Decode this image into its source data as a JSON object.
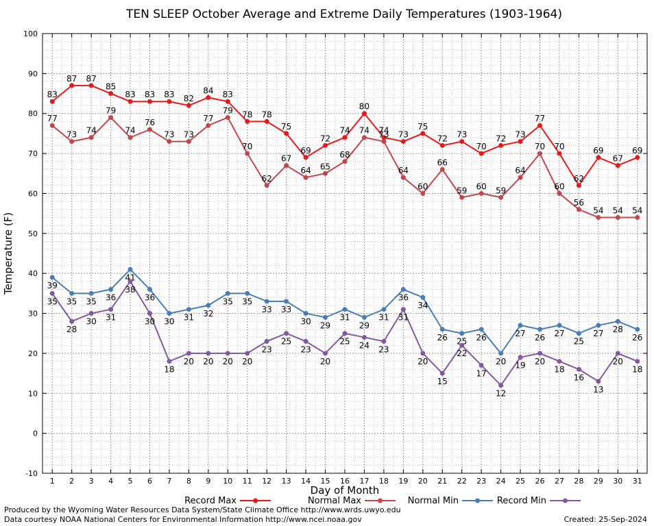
{
  "chart_data": {
    "type": "line",
    "title": "TEN SLEEP October Average and Extreme Daily Temperatures (1903-1964)",
    "xlabel": "Day of Month",
    "ylabel": "Temperature (F)",
    "ylim": [
      -10,
      100
    ],
    "yticks": [
      "-10",
      "0",
      "10",
      "20",
      "30",
      "40",
      "50",
      "60",
      "70",
      "80",
      "90",
      "100"
    ],
    "x": [
      1,
      2,
      3,
      4,
      5,
      6,
      7,
      8,
      9,
      10,
      11,
      12,
      13,
      14,
      15,
      16,
      17,
      18,
      19,
      20,
      21,
      22,
      23,
      24,
      25,
      26,
      27,
      28,
      29,
      30,
      31
    ],
    "grid": true,
    "legend_position": "bottom",
    "series": [
      {
        "name": "Record Max",
        "color": "#e41a1c",
        "values": [
          83,
          87,
          87,
          85,
          83,
          83,
          83,
          82,
          84,
          83,
          78,
          78,
          75,
          69,
          72,
          74,
          80,
          74,
          73,
          75,
          72,
          73,
          70,
          72,
          73,
          77,
          70,
          62,
          69,
          67,
          69
        ]
      },
      {
        "name": "Normal Max",
        "color": "#c0474c",
        "values": [
          77,
          73,
          74,
          79,
          74,
          76,
          73,
          73,
          77,
          79,
          70,
          62,
          67,
          64,
          65,
          68,
          74,
          73,
          64,
          60,
          66,
          59,
          60,
          59,
          64,
          70,
          60,
          56,
          54,
          54,
          54
        ]
      },
      {
        "name": "Normal Min",
        "color": "#4a7db5",
        "values": [
          39,
          35,
          35,
          36,
          41,
          36,
          30,
          31,
          32,
          35,
          35,
          33,
          33,
          30,
          29,
          31,
          29,
          31,
          36,
          34,
          26,
          25,
          26,
          20,
          27,
          26,
          27,
          25,
          27,
          28,
          26
        ]
      },
      {
        "name": "Record Min",
        "color": "#7f5a9c",
        "values": [
          35,
          28,
          30,
          31,
          38,
          30,
          18,
          20,
          20,
          20,
          20,
          23,
          25,
          23,
          20,
          25,
          24,
          23,
          31,
          20,
          15,
          22,
          17,
          12,
          19,
          20,
          18,
          16,
          13,
          20,
          18
        ]
      }
    ]
  },
  "footer": {
    "produced_by": "Produced by the Wyoming Water Resources Data System/State Climate Office http://www.wrds.uwyo.edu",
    "data_courtesy": "Data courtesy NOAA National Centers for Environmental Information http://www.ncei.noaa.gov",
    "created": "Created:  25-Sep-2024"
  }
}
